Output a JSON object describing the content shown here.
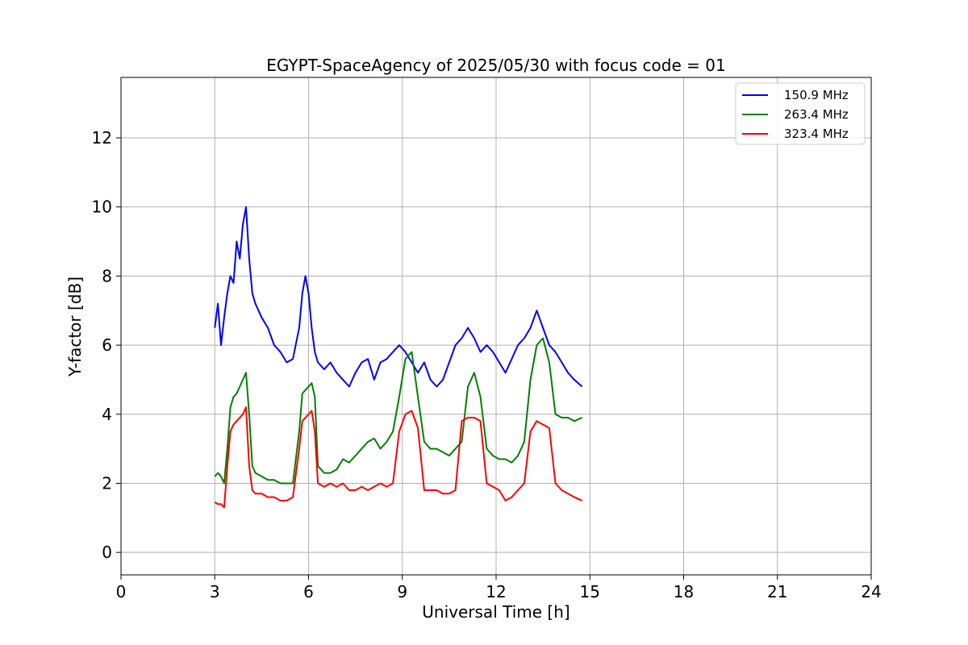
{
  "chart_data": {
    "type": "line",
    "title": "EGYPT-SpaceAgency of 2025/05/30 with focus code = 01",
    "xlabel": "Universal Time [h]",
    "ylabel": "Y-factor [dB]",
    "xlim": [
      0,
      24
    ],
    "ylim": [
      -0.65,
      13.75
    ],
    "xticks": [
      0,
      3,
      6,
      9,
      12,
      15,
      18,
      21,
      24
    ],
    "yticks": [
      0,
      2,
      4,
      6,
      8,
      10,
      12
    ],
    "grid": true,
    "legend_position": "top-right",
    "series": [
      {
        "name": "150.9 MHz",
        "color": "#0000ff",
        "x": [
          3.0,
          3.1,
          3.2,
          3.3,
          3.4,
          3.5,
          3.6,
          3.7,
          3.8,
          3.9,
          4.0,
          4.1,
          4.2,
          4.3,
          4.5,
          4.7,
          4.9,
          5.1,
          5.3,
          5.5,
          5.7,
          5.8,
          5.9,
          6.0,
          6.1,
          6.2,
          6.3,
          6.5,
          6.7,
          6.9,
          7.1,
          7.3,
          7.5,
          7.7,
          7.9,
          8.1,
          8.3,
          8.5,
          8.7,
          8.9,
          9.1,
          9.3,
          9.5,
          9.7,
          9.9,
          10.1,
          10.3,
          10.5,
          10.7,
          10.9,
          11.1,
          11.3,
          11.5,
          11.7,
          11.9,
          12.1,
          12.3,
          12.5,
          12.7,
          12.9,
          13.1,
          13.3,
          13.5,
          13.7,
          13.9,
          14.1,
          14.3,
          14.5,
          14.75
        ],
        "values": [
          6.5,
          7.2,
          6.0,
          6.8,
          7.5,
          8.0,
          7.8,
          9.0,
          8.5,
          9.5,
          10.0,
          8.5,
          7.5,
          7.2,
          6.8,
          6.5,
          6.0,
          5.8,
          5.5,
          5.6,
          6.5,
          7.5,
          8.0,
          7.5,
          6.5,
          5.8,
          5.5,
          5.3,
          5.5,
          5.2,
          5.0,
          4.8,
          5.2,
          5.5,
          5.6,
          5.0,
          5.5,
          5.6,
          5.8,
          6.0,
          5.8,
          5.5,
          5.2,
          5.5,
          5.0,
          4.8,
          5.0,
          5.5,
          6.0,
          6.2,
          6.5,
          6.2,
          5.8,
          6.0,
          5.8,
          5.5,
          5.2,
          5.6,
          6.0,
          6.2,
          6.5,
          7.0,
          6.5,
          6.0,
          5.8,
          5.5,
          5.2,
          5.0,
          4.8
        ]
      },
      {
        "name": "263.4 MHz",
        "color": "#008000",
        "x": [
          3.0,
          3.1,
          3.2,
          3.3,
          3.4,
          3.5,
          3.6,
          3.7,
          3.8,
          3.9,
          4.0,
          4.1,
          4.2,
          4.3,
          4.5,
          4.7,
          4.9,
          5.1,
          5.3,
          5.5,
          5.7,
          5.8,
          5.9,
          6.0,
          6.1,
          6.2,
          6.3,
          6.5,
          6.7,
          6.9,
          7.1,
          7.3,
          7.5,
          7.7,
          7.9,
          8.1,
          8.3,
          8.5,
          8.7,
          8.9,
          9.1,
          9.3,
          9.5,
          9.7,
          9.9,
          10.1,
          10.3,
          10.5,
          10.7,
          10.9,
          11.1,
          11.3,
          11.5,
          11.7,
          11.9,
          12.1,
          12.3,
          12.5,
          12.7,
          12.9,
          13.1,
          13.3,
          13.5,
          13.7,
          13.9,
          14.1,
          14.3,
          14.5,
          14.75
        ],
        "values": [
          2.2,
          2.3,
          2.2,
          2.0,
          3.0,
          4.2,
          4.5,
          4.6,
          4.8,
          5.0,
          5.2,
          4.0,
          2.5,
          2.3,
          2.2,
          2.1,
          2.1,
          2.0,
          2.0,
          2.0,
          3.5,
          4.6,
          4.7,
          4.8,
          4.9,
          4.5,
          2.5,
          2.3,
          2.3,
          2.4,
          2.7,
          2.6,
          2.8,
          3.0,
          3.2,
          3.3,
          3.0,
          3.2,
          3.5,
          4.5,
          5.6,
          5.8,
          4.5,
          3.2,
          3.0,
          3.0,
          2.9,
          2.8,
          3.0,
          3.2,
          4.8,
          5.2,
          4.5,
          3.0,
          2.8,
          2.7,
          2.7,
          2.6,
          2.8,
          3.2,
          5.0,
          6.0,
          6.2,
          5.5,
          4.0,
          3.9,
          3.9,
          3.8,
          3.9
        ]
      },
      {
        "name": "323.4 MHz",
        "color": "#ff0000",
        "x": [
          3.0,
          3.1,
          3.2,
          3.3,
          3.4,
          3.5,
          3.6,
          3.7,
          3.8,
          3.9,
          4.0,
          4.1,
          4.2,
          4.3,
          4.5,
          4.7,
          4.9,
          5.1,
          5.3,
          5.5,
          5.7,
          5.8,
          5.9,
          6.0,
          6.1,
          6.2,
          6.3,
          6.5,
          6.7,
          6.9,
          7.1,
          7.3,
          7.5,
          7.7,
          7.9,
          8.1,
          8.3,
          8.5,
          8.7,
          8.9,
          9.1,
          9.3,
          9.5,
          9.7,
          9.9,
          10.1,
          10.3,
          10.5,
          10.7,
          10.9,
          11.1,
          11.3,
          11.5,
          11.7,
          11.9,
          12.1,
          12.3,
          12.5,
          12.7,
          12.9,
          13.1,
          13.3,
          13.5,
          13.7,
          13.9,
          14.1,
          14.3,
          14.5,
          14.75
        ],
        "values": [
          1.45,
          1.4,
          1.4,
          1.3,
          2.5,
          3.5,
          3.7,
          3.8,
          3.9,
          4.0,
          4.2,
          2.5,
          1.8,
          1.7,
          1.7,
          1.6,
          1.6,
          1.5,
          1.5,
          1.6,
          3.0,
          3.8,
          3.9,
          4.0,
          4.1,
          3.5,
          2.0,
          1.9,
          2.0,
          1.9,
          2.0,
          1.8,
          1.8,
          1.9,
          1.8,
          1.9,
          2.0,
          1.9,
          2.0,
          3.5,
          4.0,
          4.1,
          3.6,
          1.8,
          1.8,
          1.8,
          1.7,
          1.7,
          1.8,
          3.8,
          3.9,
          3.9,
          3.8,
          2.0,
          1.9,
          1.8,
          1.5,
          1.6,
          1.8,
          2.0,
          3.5,
          3.8,
          3.7,
          3.6,
          2.0,
          1.8,
          1.7,
          1.6,
          1.5
        ]
      }
    ]
  }
}
